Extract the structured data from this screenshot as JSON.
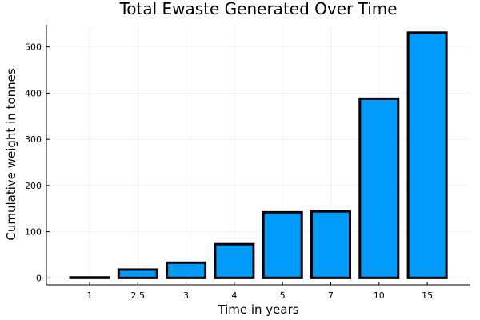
{
  "chart_data": {
    "type": "bar",
    "title": "Total Ewaste Generated Over Time",
    "xlabel": "Time in years",
    "ylabel": "Cumulative weight in tonnes",
    "categories": [
      "1",
      "2.5",
      "3",
      "4",
      "5",
      "7",
      "10",
      "15"
    ],
    "values": [
      1,
      18,
      33,
      73,
      142,
      144,
      388,
      531
    ],
    "ylim": [
      -15,
      548
    ],
    "yticks": [
      0,
      100,
      200,
      300,
      400,
      500
    ],
    "grid": true,
    "legend": "none",
    "bar_color": "#009af9",
    "bar_edge_color": "#000000"
  }
}
